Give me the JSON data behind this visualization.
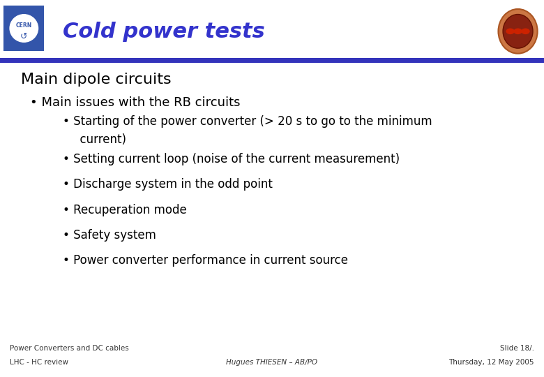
{
  "title": "Cold power tests",
  "title_color": "#3333cc",
  "bg_color": "#ffffff",
  "section_title": "Main dipole circuits",
  "bullet1_text": "• Main issues with the RB circuits",
  "sub_bullet_line1a": "• Starting of the power converter (> 20 s to go to the minimum",
  "sub_bullet_line1b": "  current)",
  "sub_bullet_2": "• Setting current loop (noise of the current measurement)",
  "sub_bullet_3": "• Discharge system in the odd point",
  "sub_bullet_4": "• Recuperation mode",
  "sub_bullet_5": "• Safety system",
  "sub_bullet_6": "• Power converter performance in current source",
  "footer_left_line1": "Power Converters and DC cables",
  "footer_left_line2": "LHC - HC review",
  "footer_center": "Hugues THIESEN – AB/PO",
  "footer_right_line1": "Slide 18/.",
  "footer_right_line2": "Thursday, 12 May 2005",
  "header_blue": "#3333bb",
  "cern_box_color": "#3355aa",
  "title_font_size": 22,
  "section_font_size": 16,
  "bullet1_font_size": 13,
  "sub_bullet_font_size": 12,
  "footer_font_size": 7.5
}
